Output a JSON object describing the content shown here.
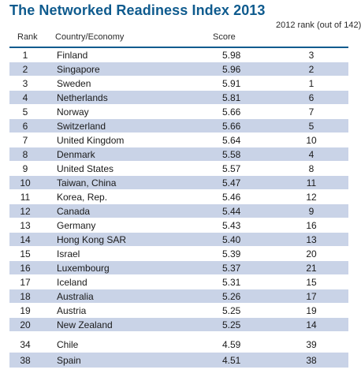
{
  "chart_data": {
    "type": "table",
    "title": "The Networked Readiness Index 2013",
    "columns": {
      "rank": "Rank",
      "country": "Country/Economy",
      "score": "Score",
      "prev_rank": "2012 rank (out of 142)"
    },
    "rows": [
      {
        "rank": "1",
        "country": "Finland",
        "score": "5.98",
        "prev_rank": "3"
      },
      {
        "rank": "2",
        "country": "Singapore",
        "score": "5.96",
        "prev_rank": "2"
      },
      {
        "rank": "3",
        "country": "Sweden",
        "score": "5.91",
        "prev_rank": "1"
      },
      {
        "rank": "4",
        "country": "Netherlands",
        "score": "5.81",
        "prev_rank": "6"
      },
      {
        "rank": "5",
        "country": "Norway",
        "score": "5.66",
        "prev_rank": "7"
      },
      {
        "rank": "6",
        "country": "Switzerland",
        "score": "5.66",
        "prev_rank": "5"
      },
      {
        "rank": "7",
        "country": "United Kingdom",
        "score": "5.64",
        "prev_rank": "10"
      },
      {
        "rank": "8",
        "country": "Denmark",
        "score": "5.58",
        "prev_rank": "4"
      },
      {
        "rank": "9",
        "country": "United States",
        "score": "5.57",
        "prev_rank": "8"
      },
      {
        "rank": "10",
        "country": "Taiwan, China",
        "score": "5.47",
        "prev_rank": "11"
      },
      {
        "rank": "11",
        "country": "Korea, Rep.",
        "score": "5.46",
        "prev_rank": "12"
      },
      {
        "rank": "12",
        "country": "Canada",
        "score": "5.44",
        "prev_rank": "9"
      },
      {
        "rank": "13",
        "country": "Germany",
        "score": "5.43",
        "prev_rank": "16"
      },
      {
        "rank": "14",
        "country": "Hong Kong SAR",
        "score": "5.40",
        "prev_rank": "13"
      },
      {
        "rank": "15",
        "country": "Israel",
        "score": "5.39",
        "prev_rank": "20"
      },
      {
        "rank": "16",
        "country": "Luxembourg",
        "score": "5.37",
        "prev_rank": "21"
      },
      {
        "rank": "17",
        "country": "Iceland",
        "score": "5.31",
        "prev_rank": "15"
      },
      {
        "rank": "18",
        "country": "Australia",
        "score": "5.26",
        "prev_rank": "17"
      },
      {
        "rank": "19",
        "country": "Austria",
        "score": "5.25",
        "prev_rank": "19"
      },
      {
        "rank": "20",
        "country": "New Zealand",
        "score": "5.25",
        "prev_rank": "14"
      },
      {
        "rank": "34",
        "country": "Chile",
        "score": "4.59",
        "prev_rank": "39"
      },
      {
        "rank": "38",
        "country": "Spain",
        "score": "4.51",
        "prev_rank": "38"
      }
    ]
  },
  "colors": {
    "accent": "#0f5b8e",
    "row_shade": "#c9d3e7"
  }
}
